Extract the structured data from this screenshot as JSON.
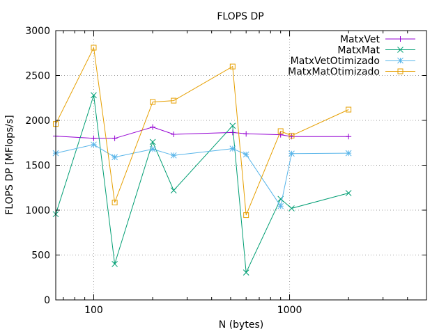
{
  "chart_data": {
    "type": "line",
    "title": "FLOPS DP",
    "xlabel": "N (bytes)",
    "ylabel": "FLOPS DP [MFlops/s]",
    "xscale": "log",
    "xlim": [
      64,
      5000
    ],
    "ylim": [
      0,
      3000
    ],
    "grid": true,
    "legend": "top-right",
    "x_ticks": [
      100,
      1000
    ],
    "y_ticks": [
      0,
      500,
      1000,
      1500,
      2000,
      2500,
      3000
    ],
    "x": [
      64,
      100,
      128,
      200,
      256,
      512,
      600,
      900,
      1024,
      2000
    ],
    "series": [
      {
        "name": "MatxVet",
        "color": "#9400d3",
        "marker": "plus",
        "values": [
          1825,
          1800,
          1800,
          1925,
          1845,
          1865,
          1850,
          1840,
          1820,
          1820
        ]
      },
      {
        "name": "MatxMat",
        "color": "#009e73",
        "marker": "x",
        "values": [
          955,
          2280,
          400,
          1760,
          1220,
          1940,
          305,
          1125,
          1020,
          1190
        ]
      },
      {
        "name": "MatxVetOtimizado",
        "color": "#56b4e9",
        "marker": "star",
        "values": [
          1635,
          1730,
          1590,
          1680,
          1610,
          1685,
          1620,
          1045,
          1630,
          1635
        ]
      },
      {
        "name": "MatxMatOtimizado",
        "color": "#e69f00",
        "marker": "square",
        "values": [
          1960,
          2810,
          1085,
          2205,
          2220,
          2600,
          945,
          1880,
          1830,
          2120
        ]
      }
    ]
  }
}
